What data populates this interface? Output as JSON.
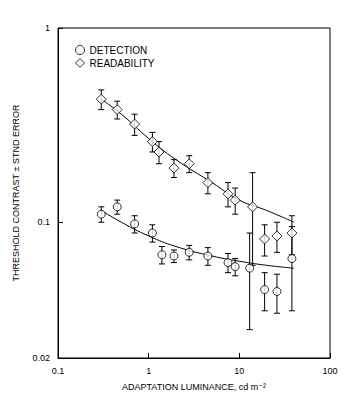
{
  "chart_data": {
    "type": "scatter",
    "x_label": "ADAPTATION LUMINANCE, cd m⁻²",
    "y_label": "THRESHOLD CONTRAST ± STND ERROR",
    "log": true,
    "grid": false,
    "legend": "upper left",
    "xlim": [
      0.1,
      100
    ],
    "xticks": [
      0.1,
      1,
      10,
      100
    ],
    "ylim": [
      0.02,
      1
    ],
    "yticks": [
      0.02,
      0.1,
      1
    ],
    "series": [
      {
        "name": "DETECTION",
        "color": "#000000",
        "marker": "circle",
        "x": [
          0.3,
          0.45,
          0.7,
          1.1,
          1.4,
          1.9,
          2.8,
          4.5,
          7.5,
          9,
          13,
          19,
          26,
          38
        ],
        "values": [
          0.11,
          0.12,
          0.098,
          0.088,
          0.068,
          0.067,
          0.07,
          0.067,
          0.062,
          0.059,
          0.058,
          0.045,
          0.044,
          0.065
        ],
        "errors": [
          0.01,
          0.01,
          0.01,
          0.009,
          0.007,
          0.005,
          0.006,
          0.007,
          0.007,
          0.006,
          0.03,
          0.01,
          0.01,
          0.03
        ],
        "fit": {
          "x": [
            0.3,
            0.5,
            1,
            2,
            5,
            10,
            20,
            40
          ],
          "values": [
            0.115,
            0.1,
            0.085,
            0.075,
            0.067,
            0.063,
            0.06,
            0.058
          ]
        }
      },
      {
        "name": "READABILITY",
        "color": "#000000",
        "marker": "diamond",
        "x": [
          0.3,
          0.45,
          0.7,
          1.1,
          1.3,
          1.9,
          2.8,
          4.5,
          7.5,
          9,
          14,
          19,
          26,
          38
        ],
        "values": [
          0.43,
          0.38,
          0.32,
          0.26,
          0.23,
          0.19,
          0.2,
          0.16,
          0.14,
          0.13,
          0.12,
          0.082,
          0.085,
          0.088
        ],
        "errors": [
          0.05,
          0.04,
          0.04,
          0.03,
          0.03,
          0.02,
          0.02,
          0.02,
          0.02,
          0.02,
          0.06,
          0.015,
          0.015,
          0.02
        ],
        "fit": {
          "x": [
            0.3,
            0.5,
            1,
            2,
            5,
            10,
            20,
            40
          ],
          "values": [
            0.43,
            0.36,
            0.27,
            0.21,
            0.16,
            0.13,
            0.115,
            0.1
          ]
        }
      }
    ]
  }
}
